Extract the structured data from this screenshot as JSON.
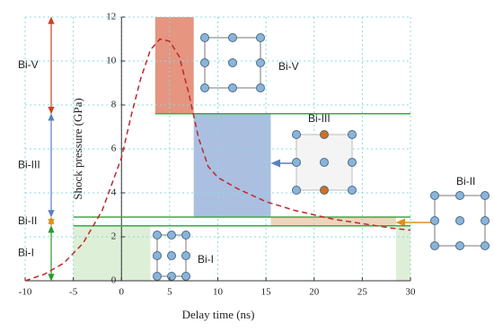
{
  "chart_data": {
    "type": "line",
    "x_label": "Delay time (ns)",
    "y_label": "Shock pressure (GPa)",
    "xlim": [
      -10,
      30
    ],
    "ylim": [
      0,
      12
    ],
    "xticks": [
      -10,
      -5,
      0,
      5,
      10,
      15,
      20,
      25,
      30
    ],
    "yticks": [
      0,
      2,
      4,
      6,
      8,
      10,
      12
    ],
    "grid": true,
    "series": [
      {
        "color": "#c0282a",
        "x": [
          -10,
          -8,
          -6,
          -4,
          -2,
          0,
          1,
          2,
          3,
          4,
          5,
          6,
          7,
          8,
          9,
          10,
          12,
          15,
          18,
          20,
          22,
          25,
          28,
          30
        ],
        "values": [
          0,
          0.3,
          0.8,
          1.7,
          3.2,
          5.6,
          7.5,
          9.2,
          10.5,
          11.0,
          10.9,
          10.2,
          8.5,
          6.5,
          5.2,
          4.7,
          4.2,
          3.6,
          3.2,
          3.0,
          2.8,
          2.6,
          2.4,
          2.3
        ]
      }
    ],
    "regions": [
      {
        "x": [
          3.5,
          7.5
        ],
        "y": [
          7.6,
          12
        ],
        "color": "#e0826a"
      },
      {
        "x": [
          7.5,
          15.5
        ],
        "y": [
          2.9,
          7.6
        ],
        "color": "#9cb4dc"
      },
      {
        "x": [
          15.5,
          28.5
        ],
        "y": [
          2.5,
          2.9
        ],
        "color": "#e8d0b0"
      },
      {
        "x": [
          -5,
          3
        ],
        "y": [
          0,
          2.5
        ],
        "color": "#d8ecd0"
      },
      {
        "x": [
          28.5,
          30
        ],
        "y": [
          0,
          2.5
        ],
        "color": "#d8ecd0"
      }
    ],
    "boundaries": [
      {
        "y": 7.6,
        "x": [
          3.5,
          30
        ]
      },
      {
        "y": 2.9,
        "x": [
          -5,
          30
        ]
      },
      {
        "y": 2.5,
        "x": [
          -5,
          30
        ]
      }
    ],
    "phases": [
      {
        "name": "Bi-V",
        "range": [
          7.6,
          12
        ],
        "color": "#d04020"
      },
      {
        "name": "Bi-III",
        "range": [
          2.9,
          7.6
        ],
        "color": "#5a80c0"
      },
      {
        "name": "Bi-II",
        "range": [
          2.5,
          2.9
        ],
        "color": "#e0901a"
      },
      {
        "name": "Bi-I",
        "range": [
          0,
          2.5
        ],
        "color": "#2a9a2a"
      }
    ],
    "annotations": [
      "Bi-V",
      "Bi-III",
      "Bi-II",
      "Bi-I"
    ]
  }
}
